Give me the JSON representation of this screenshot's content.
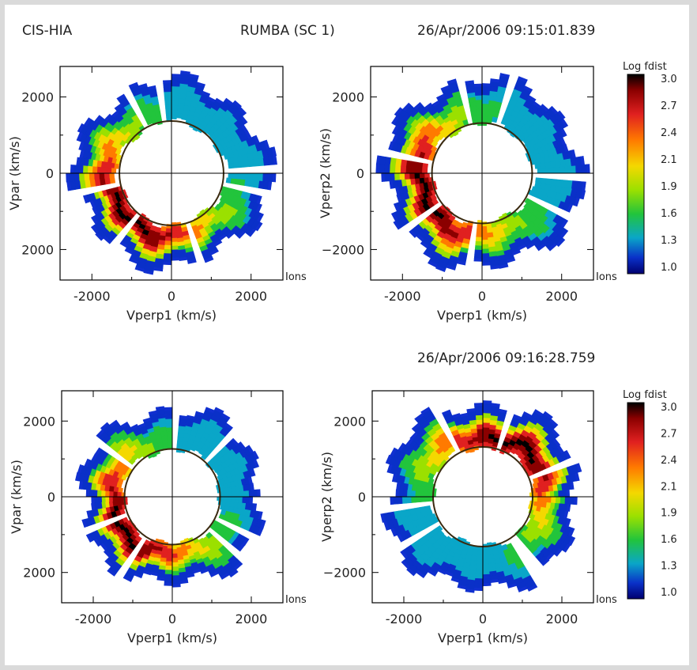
{
  "header": {
    "instrument": "CIS-HIA",
    "mode": "RUMBA (SC 1)",
    "time_top": "26/Apr/2006 09:15:01.839",
    "time_bottom": "26/Apr/2006 09:16:28.759"
  },
  "colors": {
    "background": "#dadada",
    "paper": "#ffffff",
    "frame": "#000000"
  },
  "colorbar": {
    "title": "Log fdist",
    "ticks": [
      "3.0",
      "2.7",
      "2.4",
      "2.1",
      "1.9",
      "1.6",
      "1.3",
      "1.0"
    ],
    "palette": [
      "#000000",
      "#8b0000",
      "#e02020",
      "#ff7a00",
      "#f4d800",
      "#9be000",
      "#22c43c",
      "#0aa6c8",
      "#0a30c8",
      "#000070"
    ]
  },
  "chart_data": [
    {
      "type": "heatmap",
      "panel": "top-left",
      "xlabel": "Vperp1 (km/s)",
      "ylabel": "Vpar (km/s)",
      "xlim": [
        -2800,
        2800
      ],
      "ylim": [
        -2800,
        2800
      ],
      "xticks": [
        "-2000",
        "0",
        "2000"
      ],
      "yticks": [
        "2000",
        "0",
        "2000"
      ],
      "corner_label": "Ions",
      "z_range": [
        1.0,
        3.0
      ],
      "ring": {
        "inner_radius": 1350,
        "outer_radius": 2350,
        "peak_angle_deg": 225,
        "peak_value": 3.0
      }
    },
    {
      "type": "heatmap",
      "panel": "top-right",
      "xlabel": "Vperp1 (km/s)",
      "ylabel": "Vperp2 (km/s)",
      "xlim": [
        -2800,
        2800
      ],
      "ylim": [
        -2800,
        2800
      ],
      "xticks": [
        "-2000",
        "0",
        "2000"
      ],
      "yticks": [
        "2000",
        "0",
        "−2000"
      ],
      "corner_label": "Ions",
      "z_range": [
        1.0,
        3.0
      ],
      "ring": {
        "inner_radius": 1300,
        "outer_radius": 2400,
        "peak_angle_deg": 205,
        "peak_value": 3.0
      }
    },
    {
      "type": "heatmap",
      "panel": "bottom-left",
      "xlabel": "Vperp1 (km/s)",
      "ylabel": "Vpar (km/s)",
      "xlim": [
        -2800,
        2800
      ],
      "ylim": [
        -2800,
        2800
      ],
      "xticks": [
        "-2000",
        "0",
        "2000"
      ],
      "yticks": [
        "2000",
        "0",
        "2000"
      ],
      "corner_label": "Ions",
      "z_range": [
        1.0,
        3.0
      ],
      "ring": {
        "inner_radius": 1250,
        "outer_radius": 2250,
        "peak_angle_deg": 215,
        "peak_value": 3.0
      }
    },
    {
      "type": "heatmap",
      "panel": "bottom-right",
      "xlabel": "Vperp1 (km/s)",
      "ylabel": "Vperp2 (km/s)",
      "xlim": [
        -2800,
        2800
      ],
      "ylim": [
        -2800,
        2800
      ],
      "xticks": [
        "-2000",
        "0",
        "2000"
      ],
      "yticks": [
        "2000",
        "0",
        "−2000"
      ],
      "corner_label": "Ions",
      "z_range": [
        1.0,
        3.0
      ],
      "ring": {
        "inner_radius": 1300,
        "outer_radius": 2400,
        "peak_angle_deg": 60,
        "peak_value": 3.0
      }
    }
  ]
}
